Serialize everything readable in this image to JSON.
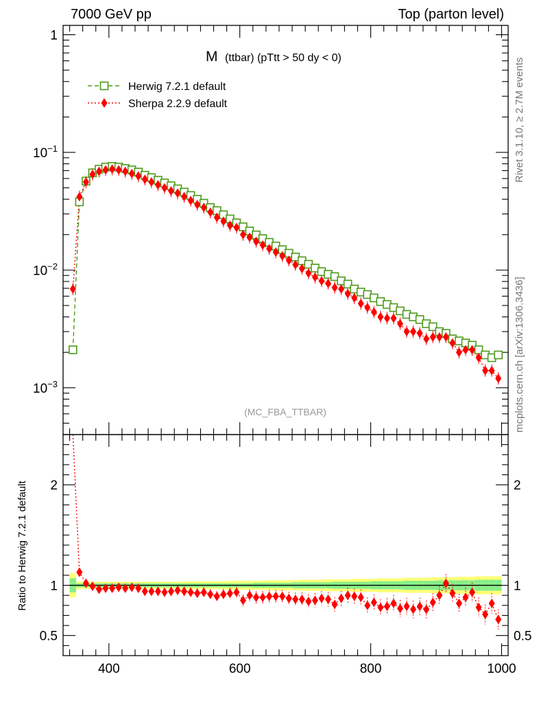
{
  "header": {
    "left": "7000 GeV pp",
    "right": "Top (parton level)"
  },
  "side_labels": {
    "rivet": "Rivet 3.1.10, ≥ 2.7M events",
    "mcplots": "mcplots.cern.ch [arXiv:1306.3436]"
  },
  "colors": {
    "herwig": "#4c9a1a",
    "sherpa": "#ff0000",
    "band_inner": "#88ee88",
    "band_outer": "#ffff77"
  },
  "chart_data": [
    {
      "type": "line",
      "title_main": "M",
      "title_rest": "(ttbar) (pTtt > 50 dy < 0)",
      "watermark": "(MC_FBA_TTBAR)",
      "yscale": "log",
      "xlim": [
        330,
        1010
      ],
      "ylim": [
        0.0004,
        1.2
      ],
      "y_ticks": [
        {
          "value": 1,
          "label": "1"
        },
        {
          "value": 0.1,
          "base": "10",
          "exp": "−1"
        },
        {
          "value": 0.01,
          "base": "10",
          "exp": "−2"
        },
        {
          "value": 0.001,
          "base": "10",
          "exp": "−3"
        }
      ],
      "legend": "top-left",
      "series": [
        {
          "name": "Herwig 7.2.1 default",
          "marker": "open-square",
          "line": "dashed",
          "x": [
            345,
            355,
            365,
            375,
            385,
            395,
            405,
            415,
            425,
            435,
            445,
            455,
            465,
            475,
            485,
            495,
            505,
            515,
            525,
            535,
            545,
            555,
            565,
            575,
            585,
            595,
            605,
            615,
            625,
            635,
            645,
            655,
            665,
            675,
            685,
            695,
            705,
            715,
            725,
            735,
            745,
            755,
            765,
            775,
            785,
            795,
            805,
            815,
            825,
            835,
            845,
            855,
            865,
            875,
            885,
            895,
            905,
            915,
            925,
            935,
            945,
            955,
            965,
            975,
            985,
            995
          ],
          "y": [
            0.0021,
            0.038,
            0.057,
            0.067,
            0.072,
            0.075,
            0.076,
            0.075,
            0.073,
            0.071,
            0.068,
            0.064,
            0.061,
            0.058,
            0.055,
            0.052,
            0.049,
            0.046,
            0.043,
            0.04,
            0.037,
            0.034,
            0.032,
            0.0295,
            0.0272,
            0.0252,
            0.0233,
            0.0215,
            0.0199,
            0.0185,
            0.0172,
            0.016,
            0.0149,
            0.0139,
            0.0129,
            0.012,
            0.0112,
            0.0104,
            0.0097,
            0.0092,
            0.0088,
            0.0081,
            0.0076,
            0.0069,
            0.0065,
            0.0062,
            0.0058,
            0.0054,
            0.0051,
            0.0048,
            0.0045,
            0.0042,
            0.004,
            0.0038,
            0.0035,
            0.0033,
            0.003,
            0.0029,
            0.0026,
            0.0025,
            0.0024,
            0.0023,
            0.0021,
            0.0019,
            0.0018,
            0.0019
          ]
        },
        {
          "name": "Sherpa 2.2.9 default",
          "marker": "filled-diamond",
          "line": "dotted",
          "x": [
            345,
            355,
            365,
            375,
            385,
            395,
            405,
            415,
            425,
            435,
            445,
            455,
            465,
            475,
            485,
            495,
            505,
            515,
            525,
            535,
            545,
            555,
            565,
            575,
            585,
            595,
            605,
            615,
            625,
            635,
            645,
            655,
            665,
            675,
            685,
            695,
            705,
            715,
            725,
            735,
            745,
            755,
            765,
            775,
            785,
            795,
            805,
            815,
            825,
            835,
            845,
            855,
            865,
            875,
            885,
            895,
            905,
            915,
            925,
            935,
            945,
            955,
            965,
            975,
            985,
            995
          ],
          "y": [
            0.0069,
            0.042,
            0.056,
            0.065,
            0.069,
            0.071,
            0.072,
            0.071,
            0.069,
            0.066,
            0.063,
            0.059,
            0.056,
            0.053,
            0.05,
            0.047,
            0.045,
            0.042,
            0.039,
            0.036,
            0.034,
            0.031,
            0.028,
            0.026,
            0.024,
            0.023,
            0.02,
            0.019,
            0.0175,
            0.0163,
            0.0152,
            0.0142,
            0.0132,
            0.0121,
            0.0111,
            0.0103,
            0.0094,
            0.0087,
            0.0081,
            0.0077,
            0.0071,
            0.0069,
            0.0063,
            0.0058,
            0.0052,
            0.0048,
            0.0044,
            0.004,
            0.0039,
            0.0039,
            0.0035,
            0.003,
            0.003,
            0.0029,
            0.0026,
            0.0027,
            0.0027,
            0.0027,
            0.0024,
            0.002,
            0.0021,
            0.0021,
            0.0018,
            0.0014,
            0.0014,
            0.0012
          ]
        }
      ]
    },
    {
      "type": "line",
      "ylabel": "Ratio to Herwig 7.2.1 default",
      "xlim": [
        330,
        1010
      ],
      "ylim": [
        0.3,
        2.5
      ],
      "y_ticks": [
        {
          "value": 2,
          "label": "2"
        },
        {
          "value": 1,
          "label": "1"
        },
        {
          "value": 0.5,
          "label": "0.5"
        }
      ],
      "x_ticks": [
        {
          "value": 400,
          "label": "400"
        },
        {
          "value": 600,
          "label": "600"
        },
        {
          "value": 800,
          "label": "800"
        },
        {
          "value": 1000,
          "label": "1000"
        }
      ],
      "reference_line": 1,
      "band_inner_halfwidth": [
        0.07,
        0.02,
        0.02,
        0.02,
        0.02,
        0.02,
        0.02,
        0.02,
        0.02,
        0.02,
        0.02,
        0.02,
        0.02,
        0.02,
        0.02,
        0.02,
        0.02,
        0.02,
        0.02,
        0.02,
        0.02,
        0.02,
        0.02,
        0.02,
        0.02,
        0.02,
        0.02,
        0.02,
        0.025,
        0.025,
        0.025,
        0.025,
        0.025,
        0.025,
        0.03,
        0.03,
        0.03,
        0.03,
        0.03,
        0.03,
        0.035,
        0.035,
        0.035,
        0.035,
        0.035,
        0.035,
        0.04,
        0.04,
        0.04,
        0.04,
        0.04,
        0.045,
        0.045,
        0.045,
        0.045,
        0.045,
        0.05,
        0.05,
        0.05,
        0.05,
        0.05,
        0.05,
        0.055,
        0.055,
        0.055,
        0.055
      ],
      "band_outer_halfwidth": [
        0.12,
        0.04,
        0.035,
        0.035,
        0.035,
        0.035,
        0.035,
        0.035,
        0.035,
        0.035,
        0.035,
        0.035,
        0.035,
        0.035,
        0.035,
        0.035,
        0.035,
        0.04,
        0.04,
        0.04,
        0.04,
        0.04,
        0.04,
        0.04,
        0.045,
        0.045,
        0.045,
        0.045,
        0.045,
        0.045,
        0.05,
        0.05,
        0.05,
        0.05,
        0.05,
        0.055,
        0.055,
        0.055,
        0.055,
        0.06,
        0.06,
        0.06,
        0.06,
        0.065,
        0.065,
        0.065,
        0.065,
        0.07,
        0.07,
        0.07,
        0.07,
        0.075,
        0.075,
        0.075,
        0.075,
        0.08,
        0.08,
        0.08,
        0.08,
        0.085,
        0.085,
        0.085,
        0.09,
        0.09,
        0.09,
        0.09
      ],
      "series": [
        {
          "name": "Sherpa 2.2.9 default",
          "x": [
            345,
            355,
            365,
            375,
            385,
            395,
            405,
            415,
            425,
            435,
            445,
            455,
            465,
            475,
            485,
            495,
            505,
            515,
            525,
            535,
            545,
            555,
            565,
            575,
            585,
            595,
            605,
            615,
            625,
            635,
            645,
            655,
            665,
            675,
            685,
            695,
            705,
            715,
            725,
            735,
            745,
            755,
            765,
            775,
            785,
            795,
            805,
            815,
            825,
            835,
            845,
            855,
            865,
            875,
            885,
            895,
            905,
            915,
            925,
            935,
            945,
            955,
            965,
            975,
            985,
            995
          ],
          "y": [
            3.3,
            1.13,
            1.02,
            0.99,
            0.96,
            0.97,
            0.97,
            0.98,
            0.97,
            0.98,
            0.97,
            0.94,
            0.94,
            0.94,
            0.93,
            0.94,
            0.95,
            0.94,
            0.93,
            0.92,
            0.93,
            0.91,
            0.89,
            0.91,
            0.92,
            0.93,
            0.85,
            0.9,
            0.88,
            0.88,
            0.89,
            0.89,
            0.89,
            0.87,
            0.86,
            0.86,
            0.84,
            0.85,
            0.87,
            0.86,
            0.81,
            0.87,
            0.9,
            0.89,
            0.88,
            0.8,
            0.83,
            0.78,
            0.79,
            0.82,
            0.77,
            0.79,
            0.76,
            0.79,
            0.76,
            0.83,
            0.9,
            1.02,
            0.92,
            0.82,
            0.88,
            0.93,
            0.78,
            0.71,
            0.82,
            0.66
          ]
        }
      ]
    }
  ]
}
